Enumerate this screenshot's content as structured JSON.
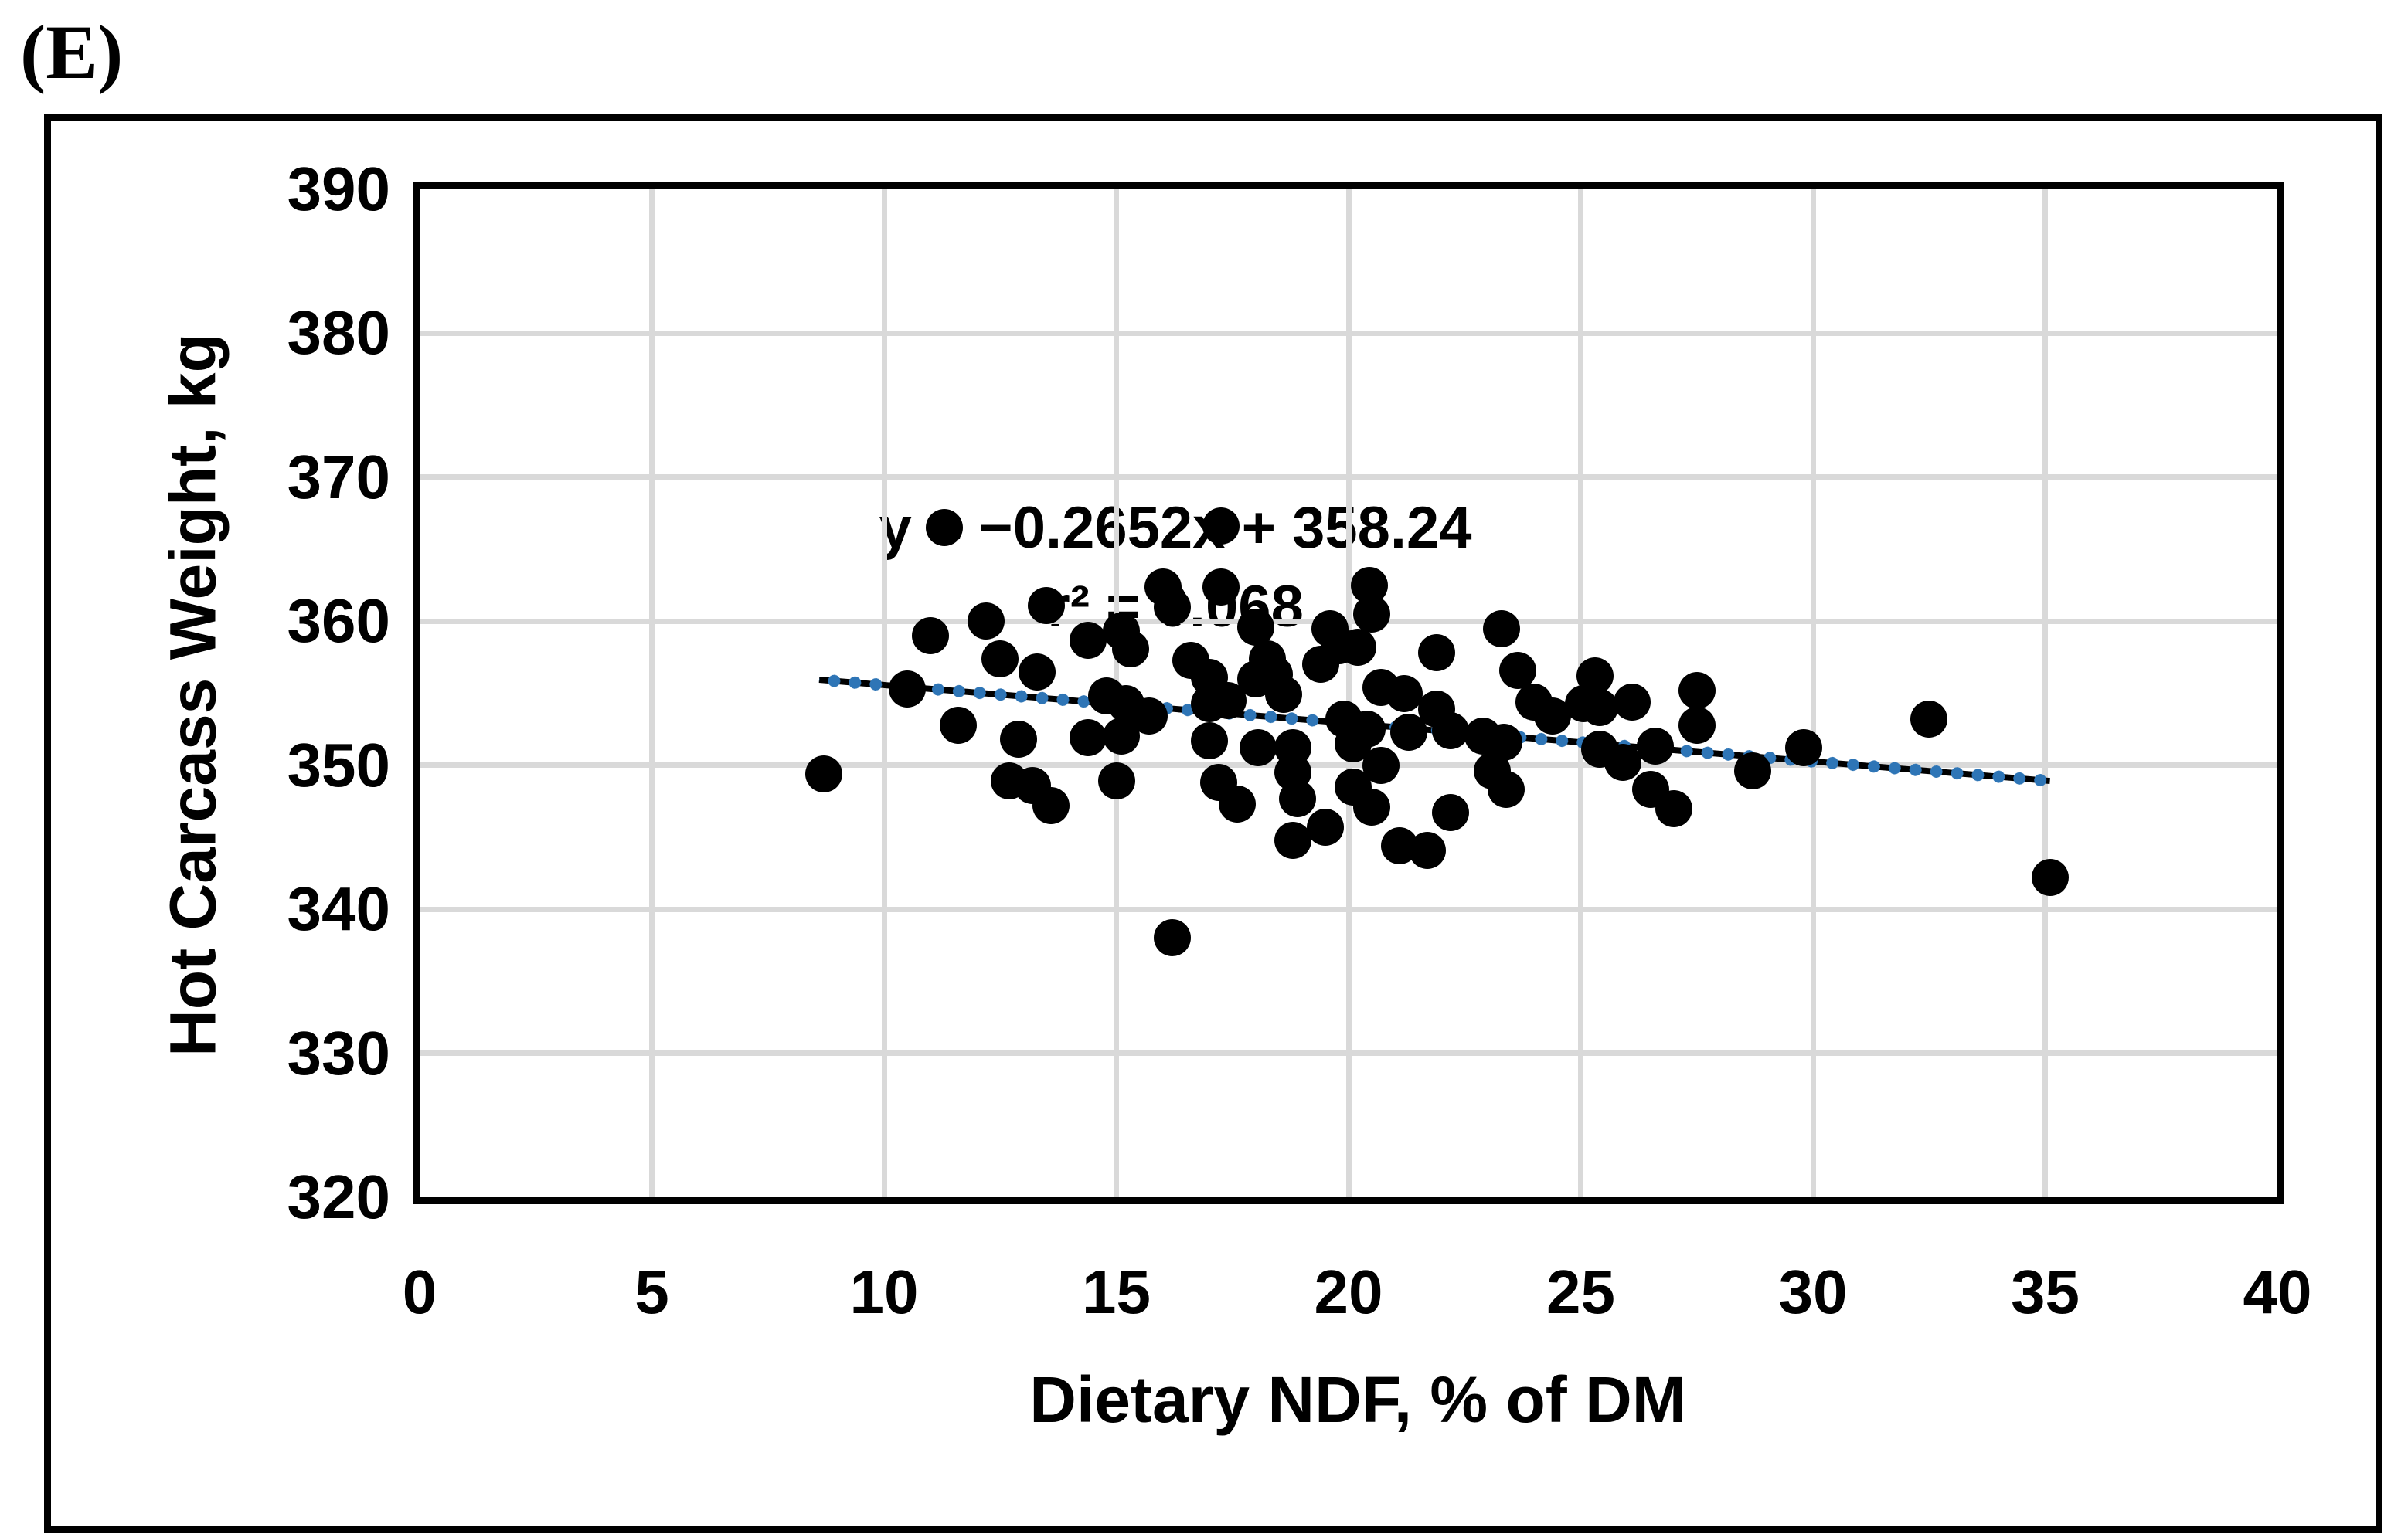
{
  "panel_label": "(E)",
  "chart_data": {
    "type": "scatter",
    "title": "",
    "xlabel": "Dietary NDF, % of DM",
    "ylabel": "Hot Carcass Weight, kg",
    "xlim": [
      0,
      40
    ],
    "ylim": [
      320,
      390
    ],
    "xticks": [
      0,
      5,
      10,
      15,
      20,
      25,
      30,
      35,
      40
    ],
    "yticks": [
      390,
      380,
      370,
      360,
      350,
      340,
      330,
      320
    ],
    "grid": true,
    "legend_position": "none",
    "annotation": {
      "line1": "y = −0.2652x + 358.24",
      "line2": "r² = 0.068"
    },
    "colors": {
      "marker": "#000000",
      "trendline_dot": "#2E75B6",
      "trendline_line": "#000000",
      "grid": "#D9D9D9",
      "axis": "#000000"
    },
    "trendline": {
      "x1": 8.6,
      "y1": 355.96,
      "x2": 35.1,
      "y2": 348.93
    },
    "points": [
      [
        8.7,
        349.4
      ],
      [
        10.5,
        355.3
      ],
      [
        11.0,
        359.0
      ],
      [
        11.3,
        366.5
      ],
      [
        11.6,
        352.8
      ],
      [
        12.2,
        360.0
      ],
      [
        12.5,
        357.4
      ],
      [
        12.7,
        348.9
      ],
      [
        12.9,
        351.8
      ],
      [
        13.2,
        348.6
      ],
      [
        13.3,
        356.5
      ],
      [
        13.5,
        361.1
      ],
      [
        13.6,
        347.2
      ],
      [
        14.4,
        351.9
      ],
      [
        14.4,
        358.7
      ],
      [
        14.8,
        354.8
      ],
      [
        15.1,
        359.3
      ],
      [
        15.3,
        358.1
      ],
      [
        15.2,
        354.3
      ],
      [
        15.7,
        353.4
      ],
      [
        15.1,
        352.0
      ],
      [
        15.0,
        348.9
      ],
      [
        16.0,
        362.4
      ],
      [
        16.2,
        361.0
      ],
      [
        16.2,
        338.0
      ],
      [
        16.6,
        357.3
      ],
      [
        17.0,
        356.1
      ],
      [
        17.0,
        351.7
      ],
      [
        17.25,
        366.6
      ],
      [
        17.25,
        362.4
      ],
      [
        17.0,
        354.3
      ],
      [
        17.4,
        354.5
      ],
      [
        17.2,
        348.8
      ],
      [
        17.6,
        347.3
      ],
      [
        18.0,
        356.0
      ],
      [
        18.0,
        359.6
      ],
      [
        18.05,
        351.2
      ],
      [
        18.25,
        357.4
      ],
      [
        18.4,
        356.3
      ],
      [
        18.6,
        354.9
      ],
      [
        18.8,
        351.2
      ],
      [
        18.8,
        349.5
      ],
      [
        18.9,
        347.7
      ],
      [
        18.8,
        344.8
      ],
      [
        19.4,
        357.0
      ],
      [
        19.6,
        359.5
      ],
      [
        19.5,
        345.7
      ],
      [
        19.8,
        358.3
      ],
      [
        20.2,
        358.2
      ],
      [
        19.9,
        353.2
      ],
      [
        20.4,
        352.5
      ],
      [
        20.1,
        351.5
      ],
      [
        20.1,
        348.5
      ],
      [
        20.5,
        347.1
      ],
      [
        20.45,
        362.5
      ],
      [
        20.5,
        360.5
      ],
      [
        20.7,
        350.0
      ],
      [
        21.1,
        344.4
      ],
      [
        20.7,
        355.4
      ],
      [
        21.2,
        355.0
      ],
      [
        21.9,
        353.9
      ],
      [
        21.3,
        352.3
      ],
      [
        21.7,
        344.1
      ],
      [
        21.9,
        357.8
      ],
      [
        22.2,
        352.4
      ],
      [
        22.9,
        352.0
      ],
      [
        23.35,
        351.6
      ],
      [
        22.2,
        346.7
      ],
      [
        23.1,
        349.6
      ],
      [
        23.4,
        348.3
      ],
      [
        23.3,
        359.5
      ],
      [
        23.65,
        356.6
      ],
      [
        24.0,
        354.4
      ],
      [
        24.4,
        353.4
      ],
      [
        25.3,
        356.2
      ],
      [
        25.05,
        354.3
      ],
      [
        25.4,
        354.0
      ],
      [
        25.4,
        351.1
      ],
      [
        25.9,
        350.2
      ],
      [
        26.1,
        354.4
      ],
      [
        26.6,
        351.3
      ],
      [
        26.5,
        348.3
      ],
      [
        27.0,
        347.0
      ],
      [
        27.5,
        355.2
      ],
      [
        27.5,
        352.8
      ],
      [
        28.7,
        349.6
      ],
      [
        29.8,
        351.2
      ],
      [
        32.5,
        353.2
      ],
      [
        35.1,
        342.2
      ]
    ]
  }
}
